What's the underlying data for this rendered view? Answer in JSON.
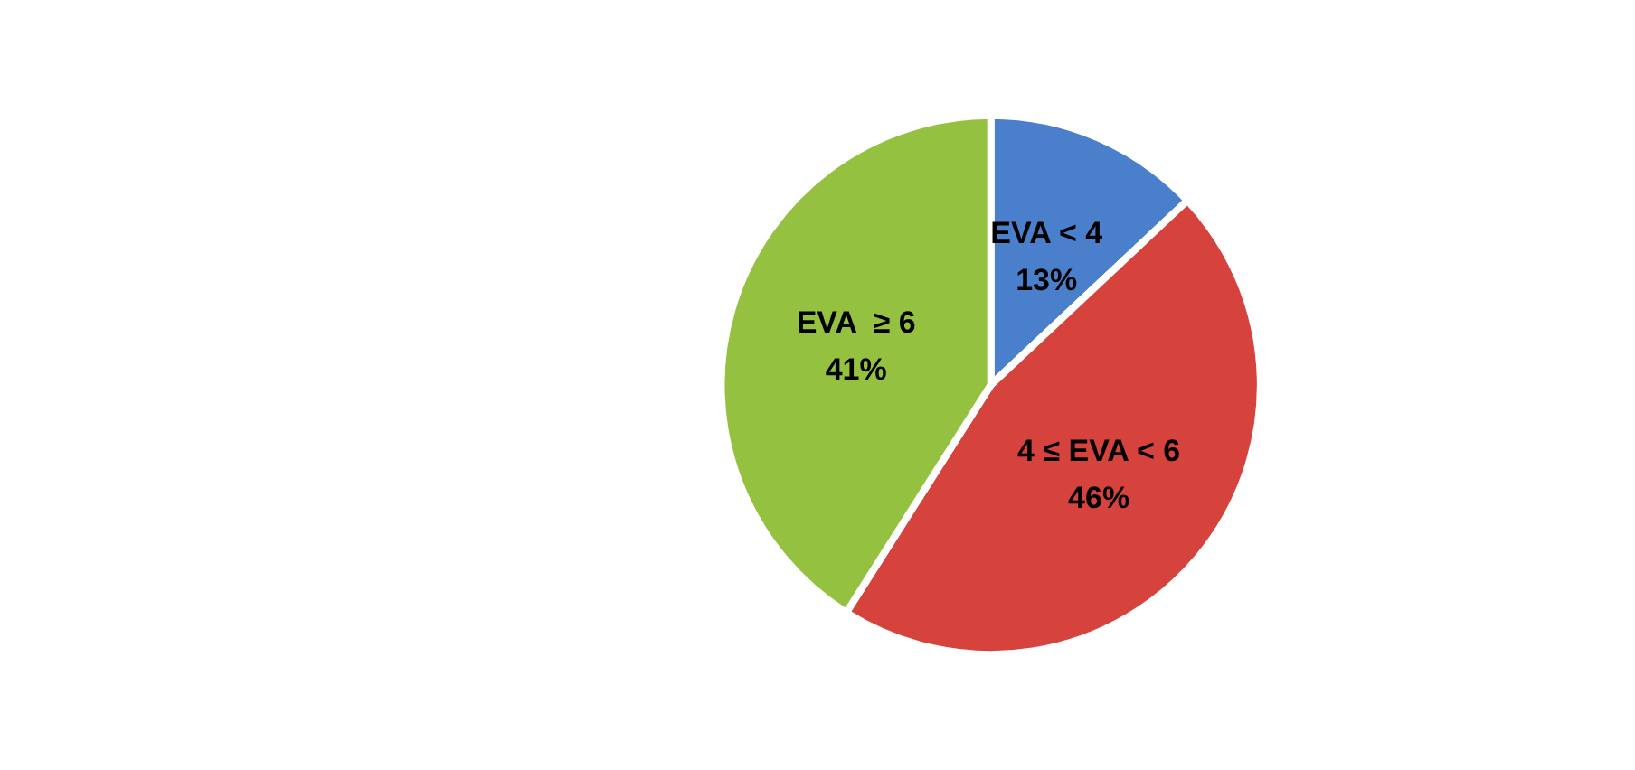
{
  "chart_data": {
    "type": "pie",
    "categories": [
      "EVA < 4",
      "4 ≤ EVA < 6",
      "EVA  ≥ 6"
    ],
    "values": [
      13,
      46,
      41
    ],
    "value_labels": [
      "13%",
      "46%",
      "41%"
    ],
    "colors": [
      "#4a7fcc",
      "#d6423c",
      "#94c13f"
    ]
  }
}
